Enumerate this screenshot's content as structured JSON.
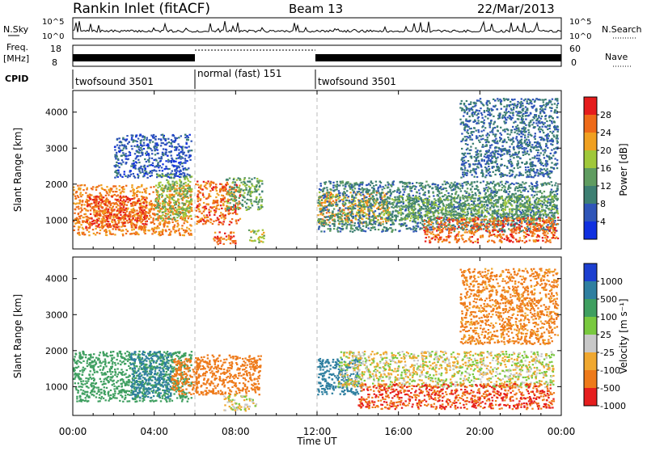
{
  "header": {
    "station": "Rankin Inlet (fitACF)",
    "beam": "Beam 13",
    "date": "22/Mar/2013"
  },
  "top_panels": {
    "nsky": {
      "label": "N.Sky",
      "ticks_left": [
        "10^5",
        "10^0"
      ],
      "ticks_right": [
        "10^5",
        "10^0"
      ],
      "right_label": "N.Search"
    },
    "freq": {
      "label_line1": "Freq.",
      "label_line2": "[MHz]",
      "ticks_left": [
        "18",
        "8"
      ],
      "ticks_right": [
        "60",
        "0"
      ],
      "right_label": "Nave"
    },
    "cpid": {
      "label": "CPID",
      "segments": [
        {
          "name": "twofsound 3501",
          "start_hour": 0,
          "end_hour": 6
        },
        {
          "name": "normal (fast) 151",
          "start_hour": 6,
          "end_hour": 12
        },
        {
          "name": "twofsound 3501",
          "start_hour": 12,
          "end_hour": 24
        }
      ]
    }
  },
  "chart_data": [
    {
      "type": "heatmap",
      "panel": "power",
      "ylabel": "Slant Range [km]",
      "yticks": [
        "1000",
        "2000",
        "3000",
        "4000"
      ],
      "ylim": [
        200,
        4600
      ],
      "xlim_hours": [
        0,
        24
      ],
      "colorbar": {
        "label": "Power [dB]",
        "tick_labels": [
          "4",
          "8",
          "12",
          "16",
          "20",
          "24",
          "28"
        ],
        "colors": [
          "#1030e0",
          "#2f55b8",
          "#3d7f72",
          "#5f9c60",
          "#a0c83a",
          "#f0a020",
          "#ee6a18",
          "#e51c1c"
        ]
      },
      "regions": [
        {
          "t0": 0.0,
          "t1": 5.8,
          "r0": 600,
          "r1": 2000,
          "level": 24
        },
        {
          "t0": 0.6,
          "t1": 3.6,
          "r0": 800,
          "r1": 1700,
          "level": 28
        },
        {
          "t0": 4.0,
          "t1": 5.8,
          "r0": 1000,
          "r1": 2300,
          "level": 16
        },
        {
          "t0": 6.0,
          "t1": 8.2,
          "r0": 900,
          "r1": 2100,
          "level": 26
        },
        {
          "t0": 7.5,
          "t1": 9.3,
          "r0": 1300,
          "r1": 2200,
          "level": 14
        },
        {
          "t0": 6.8,
          "t1": 8.0,
          "r0": 350,
          "r1": 700,
          "level": 26
        },
        {
          "t0": 8.6,
          "t1": 9.4,
          "r0": 400,
          "r1": 750,
          "level": 18
        },
        {
          "t0": 12.0,
          "t1": 15.5,
          "r0": 900,
          "r1": 1800,
          "level": 22
        },
        {
          "t0": 12.0,
          "t1": 23.8,
          "r0": 700,
          "r1": 2100,
          "level": 10
        },
        {
          "t0": 15.5,
          "t1": 23.8,
          "r0": 1000,
          "r1": 1700,
          "level": 14
        },
        {
          "t0": 17.2,
          "t1": 23.8,
          "r0": 400,
          "r1": 1100,
          "level": 26
        },
        {
          "t0": 2.0,
          "t1": 5.8,
          "r0": 2200,
          "r1": 3400,
          "level": 6
        },
        {
          "t0": 19.0,
          "t1": 23.8,
          "r0": 2200,
          "r1": 4400,
          "level": 8
        }
      ]
    },
    {
      "type": "heatmap",
      "panel": "velocity",
      "xlabel": "Time UT",
      "ylabel": "Slant Range [km]",
      "yticks": [
        "1000",
        "2000",
        "3000",
        "4000"
      ],
      "xticks": [
        "00:00",
        "04:00",
        "08:00",
        "12:00",
        "16:00",
        "20:00",
        "00:00"
      ],
      "ylim": [
        200,
        4600
      ],
      "xlim_hours": [
        0,
        24
      ],
      "colorbar": {
        "label": "Velocity [m s⁻¹]",
        "tick_labels": [
          "1000",
          "500",
          "100",
          "25",
          "-25",
          "-100",
          "-500",
          "-1000"
        ],
        "colors": [
          "#1c3fd0",
          "#2f7fa0",
          "#3f9f60",
          "#79c93f",
          "#c8c8c8",
          "#f0a830",
          "#ee7a1a",
          "#e61e1e"
        ]
      },
      "regions": [
        {
          "t0": 0.0,
          "t1": 5.8,
          "r0": 600,
          "r1": 2000,
          "level": 300
        },
        {
          "t0": 2.8,
          "t1": 4.8,
          "r0": 700,
          "r1": 2000,
          "level": 900
        },
        {
          "t0": 4.8,
          "t1": 6.2,
          "r0": 800,
          "r1": 1800,
          "level": -300
        },
        {
          "t0": 6.0,
          "t1": 9.2,
          "r0": 800,
          "r1": 1900,
          "level": -400
        },
        {
          "t0": 7.4,
          "t1": 9.0,
          "r0": 350,
          "r1": 800,
          "level": 0
        },
        {
          "t0": 12.0,
          "t1": 14.2,
          "r0": 800,
          "r1": 1800,
          "level": 800
        },
        {
          "t0": 13.0,
          "t1": 23.6,
          "r0": 1000,
          "r1": 2000,
          "level": 0
        },
        {
          "t0": 14.0,
          "t1": 23.6,
          "r0": 400,
          "r1": 1100,
          "level": -500
        },
        {
          "t0": 19.0,
          "t1": 23.8,
          "r0": 2200,
          "r1": 4300,
          "level": -150
        }
      ]
    }
  ]
}
